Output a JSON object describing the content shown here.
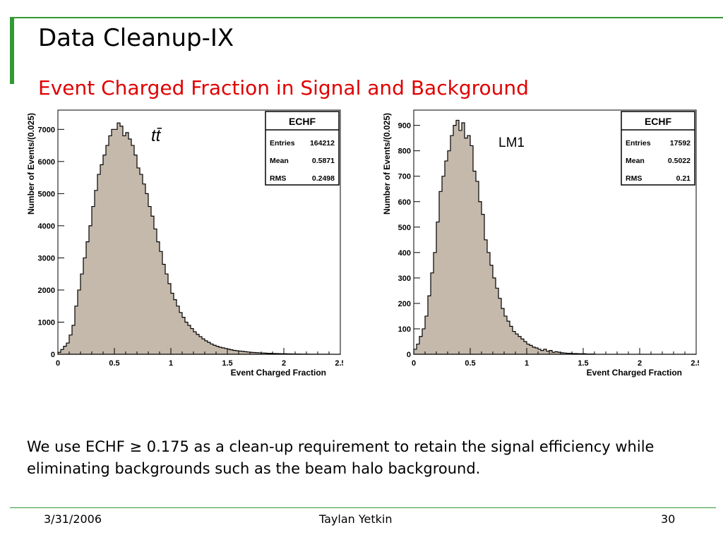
{
  "slide": {
    "title": "Data Cleanup-IX",
    "subtitle": "Event Charged Fraction in Signal and Background",
    "body_parts": [
      "We use ECHF ",
      "≥",
      " 0.175 as a clean-up requirement to retain the signal efficiency while eliminating backgrounds such as the beam halo background."
    ],
    "footer": {
      "date": "3/31/2006",
      "author": "Taylan Yetkin",
      "page": "30"
    }
  },
  "colors": {
    "accent": "#339933",
    "subtitle": "#e00000",
    "histogram_fill": "#c4b9ab",
    "histogram_line": "#000000"
  },
  "chart_data": [
    {
      "type": "bar",
      "label": "tt̄",
      "xlabel": "Event Charged Fraction",
      "ylabel": "Number of Events/(0.025)",
      "xlim": [
        0,
        2.5
      ],
      "ylim": [
        0,
        7600
      ],
      "xticks": [
        "0",
        "0.5",
        "1",
        "1.5",
        "2",
        "2.5"
      ],
      "yticks": [
        "0",
        "1000",
        "2000",
        "3000",
        "4000",
        "5000",
        "6000",
        "7000"
      ],
      "stats": {
        "name": "ECHF",
        "entries_label": "Entries",
        "entries": "164212",
        "mean_label": "Mean",
        "mean": "0.5871",
        "rms_label": "RMS",
        "rms": "0.2498"
      },
      "bin_width": 0.025,
      "values": [
        60,
        150,
        250,
        350,
        600,
        900,
        1500,
        2000,
        2500,
        3000,
        3500,
        4000,
        4600,
        5100,
        5600,
        5900,
        6200,
        6500,
        6800,
        7000,
        7000,
        7200,
        7100,
        6800,
        6900,
        6700,
        6500,
        6200,
        5800,
        5600,
        5300,
        5000,
        4600,
        4300,
        3900,
        3500,
        3200,
        2800,
        2500,
        2200,
        1900,
        1700,
        1500,
        1300,
        1150,
        1000,
        900,
        800,
        700,
        620,
        550,
        480,
        420,
        370,
        320,
        280,
        250,
        220,
        200,
        180,
        160,
        140,
        120,
        110,
        100,
        90,
        80,
        70,
        60,
        55,
        50,
        45,
        40,
        35,
        30,
        28,
        25,
        22,
        20,
        18,
        16,
        14,
        12,
        10,
        9,
        8,
        7,
        6,
        5,
        4,
        4,
        3,
        3,
        2,
        2,
        2,
        1,
        1,
        1,
        1
      ]
    },
    {
      "type": "bar",
      "label": "LM1",
      "xlabel": "Event Charged Fraction",
      "ylabel": "Number of Events/(0.025)",
      "xlim": [
        0,
        2.5
      ],
      "ylim": [
        0,
        960
      ],
      "xticks": [
        "0",
        "0.5",
        "1",
        "1.5",
        "2",
        "2.5"
      ],
      "yticks": [
        "0",
        "100",
        "200",
        "300",
        "400",
        "500",
        "600",
        "700",
        "800",
        "900"
      ],
      "stats": {
        "name": "ECHF",
        "entries_label": "Entries",
        "entries": "17592",
        "mean_label": "Mean",
        "mean": "0.5022",
        "rms_label": "RMS",
        "rms": "0.21"
      },
      "bin_width": 0.025,
      "values": [
        20,
        40,
        70,
        100,
        150,
        230,
        320,
        400,
        520,
        640,
        700,
        760,
        800,
        860,
        900,
        920,
        880,
        910,
        850,
        860,
        820,
        720,
        680,
        600,
        550,
        450,
        400,
        350,
        300,
        260,
        220,
        180,
        150,
        130,
        110,
        90,
        80,
        70,
        60,
        50,
        40,
        35,
        28,
        25,
        20,
        15,
        20,
        12,
        15,
        8,
        10,
        8,
        6,
        5,
        4,
        4,
        3,
        3,
        2,
        2,
        2,
        1,
        1,
        1,
        0,
        0,
        0,
        0,
        0,
        0,
        0,
        0,
        0,
        0,
        0,
        0,
        0,
        0,
        0,
        0,
        0,
        0,
        0,
        0,
        0,
        0,
        0,
        0,
        0,
        0,
        0,
        0,
        0,
        0,
        0,
        0,
        0,
        0,
        0,
        0
      ]
    }
  ]
}
